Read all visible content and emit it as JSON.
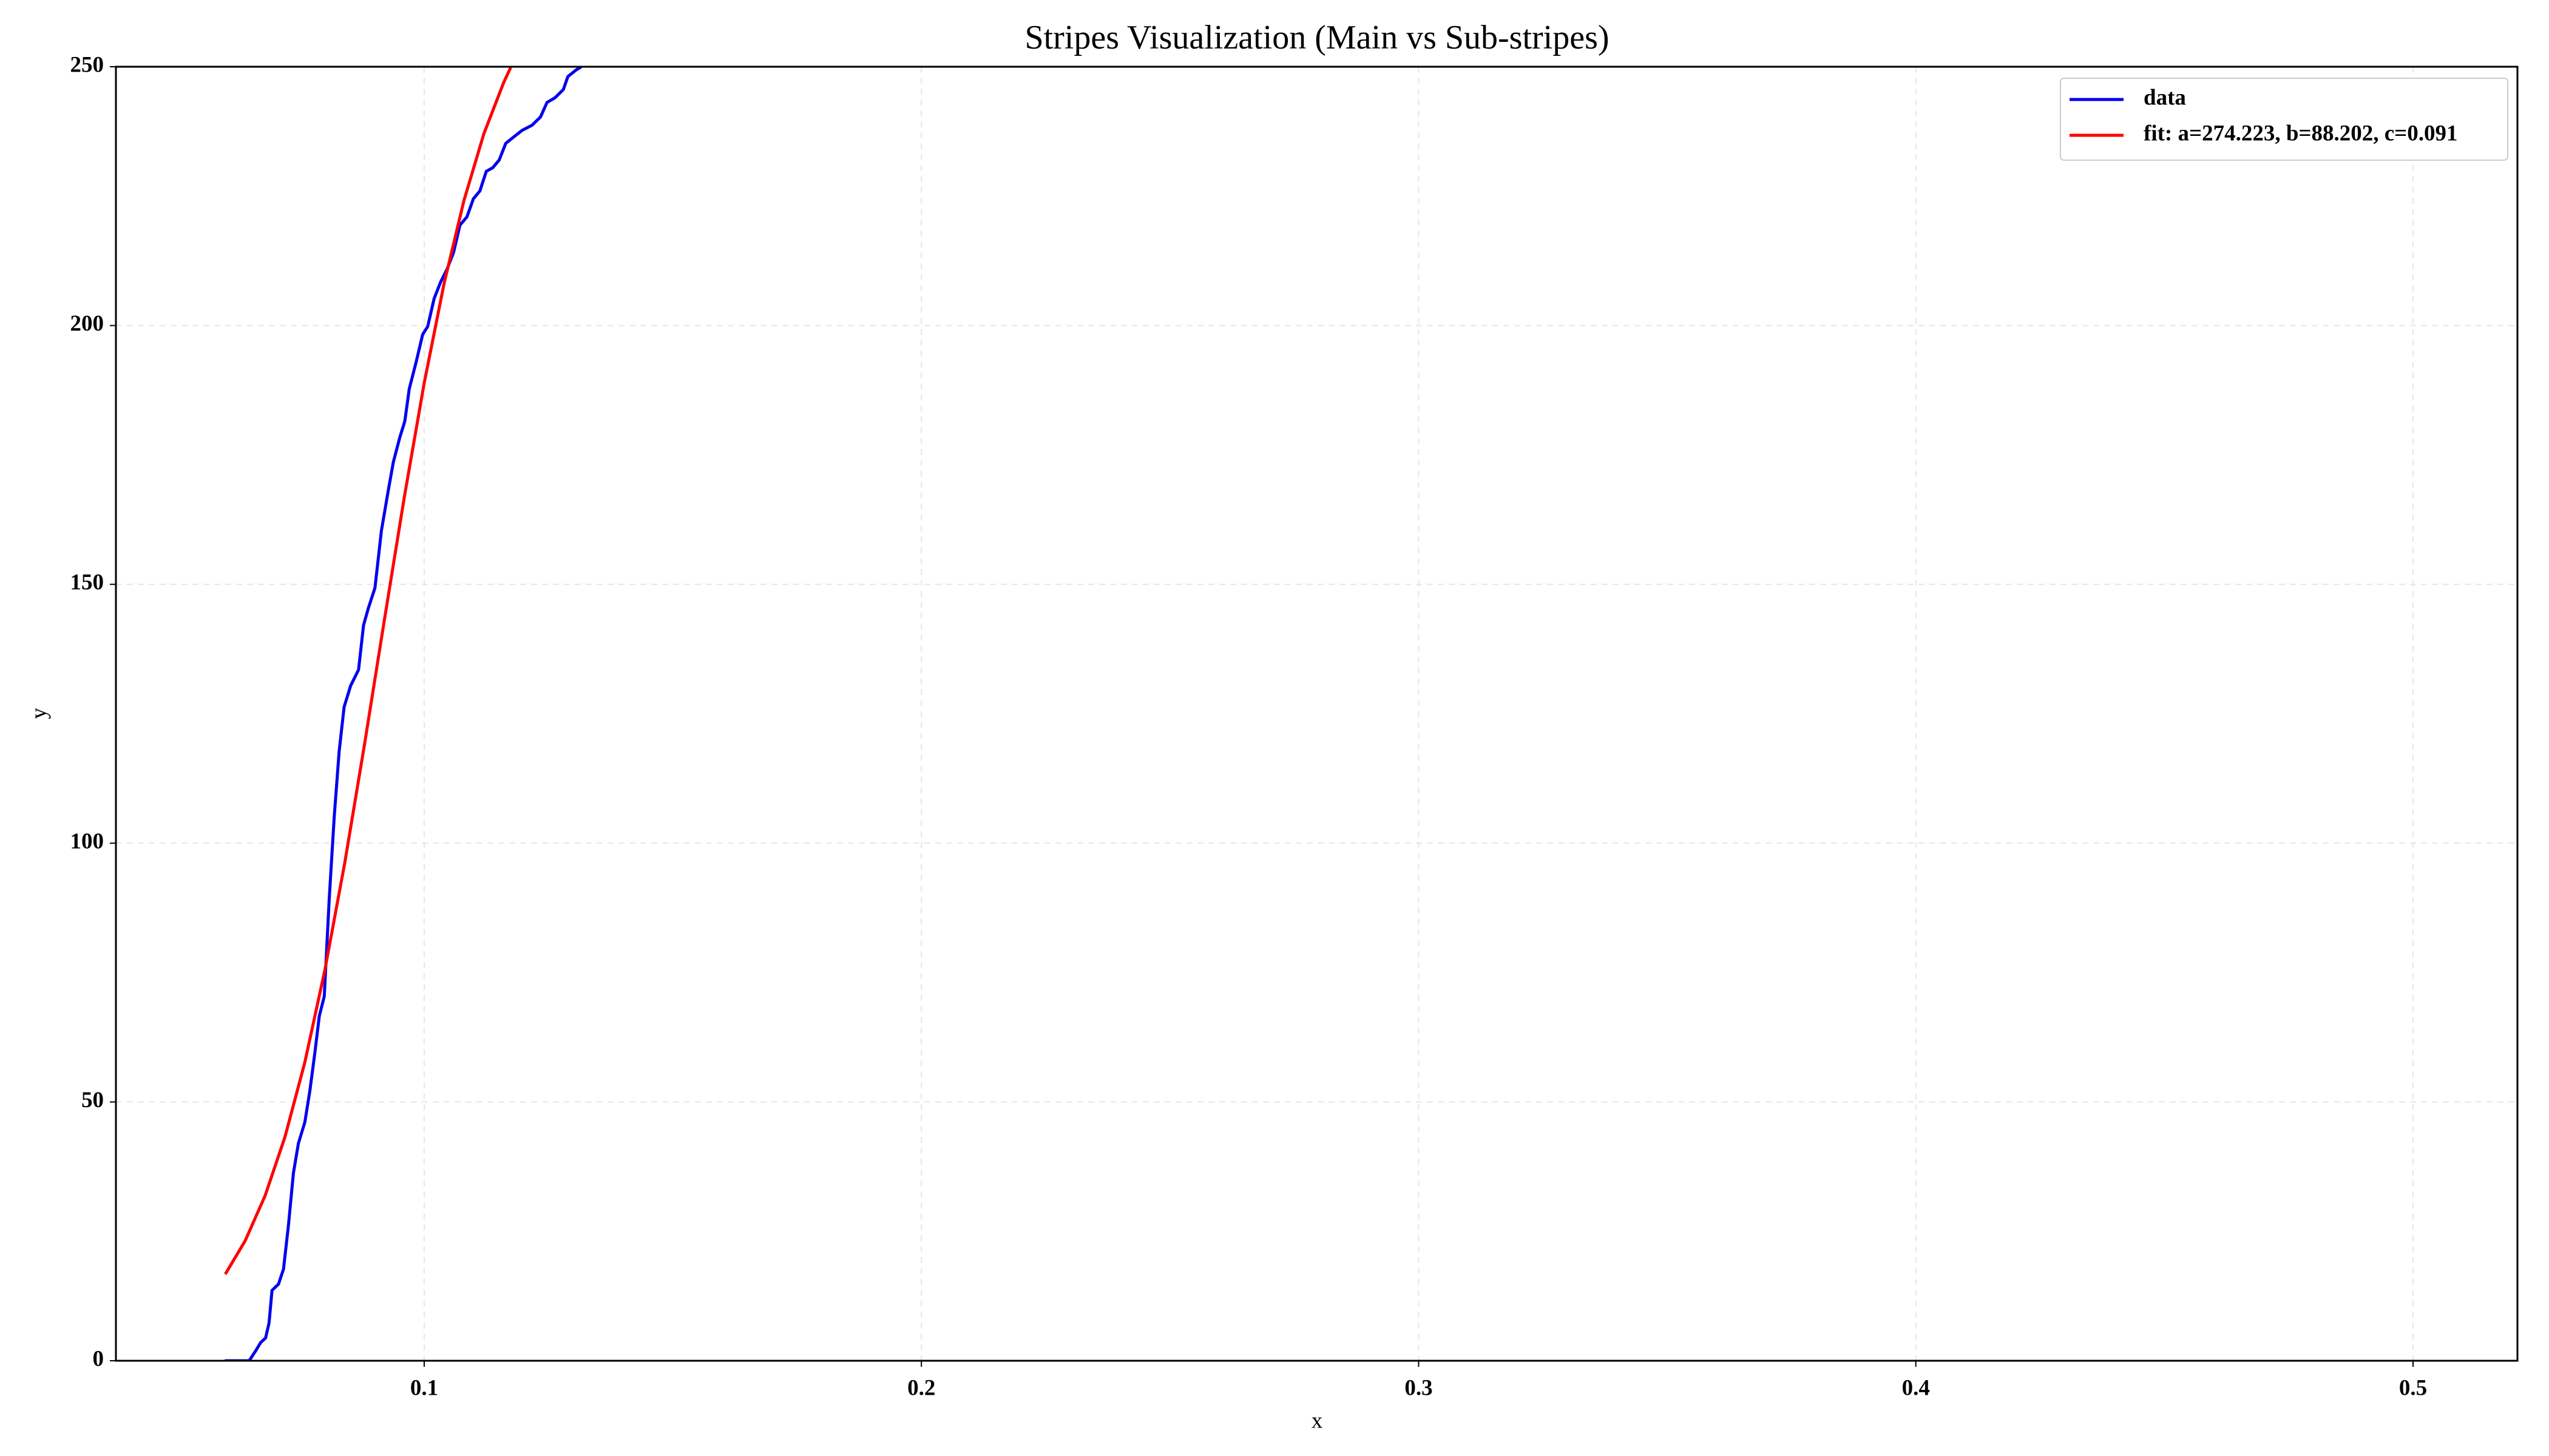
{
  "chart_data": {
    "type": "line",
    "title": "Stripes Visualization (Main vs Sub-stripes)",
    "x_label": "x",
    "y_label": "y",
    "xlim": [
      0.038,
      0.521
    ],
    "ylim": [
      0,
      250
    ],
    "xticks": [
      0.1,
      0.2,
      0.3,
      0.4,
      0.5
    ],
    "yticks": [
      0,
      50,
      100,
      150,
      200,
      250
    ],
    "grid": true,
    "legend_loc": "upper right",
    "series": [
      {
        "name": "data",
        "color": "#0000ee",
        "x": [
          0.0599,
          0.0648,
          0.0661,
          0.0671,
          0.0681,
          0.0688,
          0.0694,
          0.0707,
          0.0717,
          0.0727,
          0.0737,
          0.0747,
          0.076,
          0.077,
          0.078,
          0.0789,
          0.0799,
          0.0809,
          0.0819,
          0.0829,
          0.0839,
          0.0852,
          0.0868,
          0.0878,
          0.0888,
          0.0901,
          0.0914,
          0.0928,
          0.0938,
          0.0951,
          0.0961,
          0.097,
          0.0984,
          0.0997,
          0.1007,
          0.102,
          0.1033,
          0.1046,
          0.1059,
          0.1072,
          0.1086,
          0.1099,
          0.1112,
          0.1125,
          0.1138,
          0.1151,
          0.1164,
          0.1181,
          0.1197,
          0.1217,
          0.1234,
          0.1247,
          0.1263,
          0.128,
          0.1289,
          0.1306,
          0.1316
        ],
        "values": [
          0,
          0,
          1.9,
          3.5,
          4.4,
          7.3,
          13.6,
          14.8,
          17.7,
          26.2,
          36.3,
          42,
          46.1,
          52.1,
          59.4,
          66.6,
          70.4,
          89.3,
          105.1,
          117.7,
          126.3,
          130.4,
          133.5,
          142.1,
          145.5,
          149.3,
          160.4,
          168.3,
          173.6,
          178.4,
          181.5,
          187.8,
          193,
          198.3,
          199.8,
          205.2,
          208.4,
          210.9,
          214.1,
          219.4,
          221,
          224.5,
          226,
          229.8,
          230.5,
          232,
          235.2,
          236.5,
          237.7,
          238.7,
          240.3,
          243.1,
          244,
          245.6,
          248.1,
          249.4,
          250
        ]
      },
      {
        "name": "fit: a=274.223, b=88.202, c=0.091",
        "color": "#ff0000",
        "x": [
          0.06,
          0.064,
          0.068,
          0.072,
          0.076,
          0.08,
          0.084,
          0.088,
          0.092,
          0.096,
          0.1,
          0.104,
          0.108,
          0.112,
          0.116,
          0.1174
        ],
        "values": [
          16.73,
          23.2,
          31.88,
          43.23,
          57.67,
          75.37,
          96.08,
          119.07,
          143.15,
          166.86,
          188.85,
          208.11,
          224.18,
          237.03,
          246.98,
          249.86
        ]
      }
    ]
  }
}
